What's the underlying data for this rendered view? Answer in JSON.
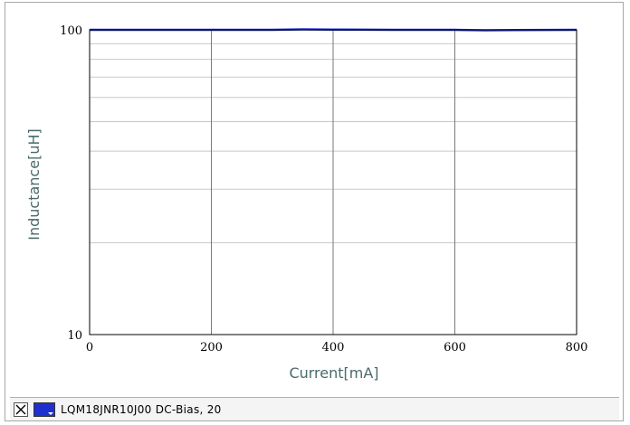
{
  "chart_data": {
    "type": "line",
    "xlabel": "Current[mA]",
    "ylabel": "Inductance[uH]",
    "x_scale": "linear",
    "y_scale": "log",
    "xlim": [
      0,
      800
    ],
    "ylim": [
      10,
      100
    ],
    "x_ticks": [
      0,
      200,
      400,
      600,
      800
    ],
    "x_tick_labels": [
      "0",
      "200",
      "400",
      "600",
      "800"
    ],
    "y_ticks": [
      10,
      100
    ],
    "y_tick_labels": [
      "10",
      "100"
    ],
    "grid": true,
    "series": [
      {
        "name": "LQM18JNR10J00  DC-Bias, 20",
        "color": "#1f2fcf",
        "x": [
          0,
          100,
          200,
          300,
          350,
          400,
          500,
          600,
          650,
          700,
          800
        ],
        "y": [
          100,
          100,
          100,
          100,
          100.3,
          100.2,
          100,
          100,
          99.7,
          99.8,
          100
        ]
      }
    ]
  },
  "legend": {
    "entries": [
      {
        "label": "LQM18JNR10J00  DC-Bias, 20",
        "color": "#1f2fcf"
      }
    ]
  },
  "colors": {
    "axis_title": "#4a6a6a",
    "grid": "#c8c8c8",
    "major_grid": "#7a7a7a"
  }
}
